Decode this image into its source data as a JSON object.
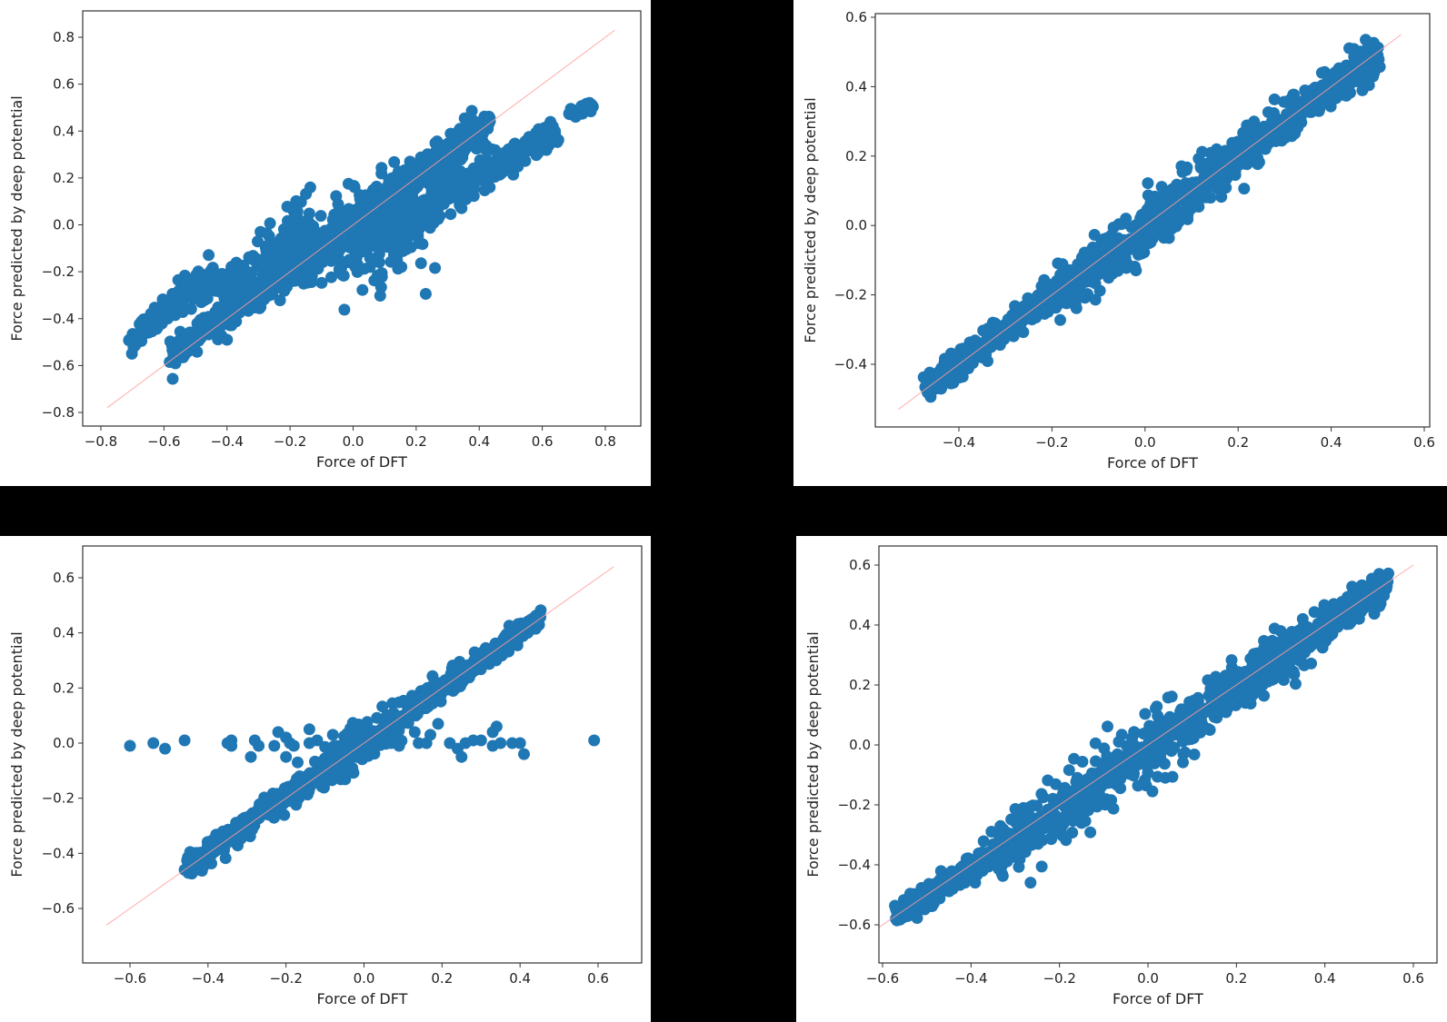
{
  "figure": {
    "background": "#000000",
    "panel_background": "#ffffff",
    "marker_color": "#1f77b4",
    "reference_line_color": "#ff9b9b"
  },
  "chart_data": [
    {
      "id": "top-left",
      "type": "scatter",
      "title": "",
      "xlabel": "Force of DFT",
      "ylabel": "Force predicted by deep potential",
      "xlim": [
        -0.86,
        0.9
      ],
      "ylim": [
        -0.85,
        0.9
      ],
      "xticks": [
        -0.8,
        -0.6,
        -0.4,
        -0.2,
        0.0,
        0.2,
        0.4,
        0.6,
        0.8
      ],
      "xtick_labels": [
        "−0.8",
        "−0.6",
        "−0.4",
        "−0.2",
        "0.0",
        "0.2",
        "0.4",
        "0.6",
        "0.8"
      ],
      "yticks": [
        -0.8,
        -0.6,
        -0.4,
        -0.2,
        0.0,
        0.2,
        0.4,
        0.6,
        0.8
      ],
      "ytick_labels": [
        "−0.8",
        "−0.6",
        "−0.4",
        "−0.2",
        "0.0",
        "0.2",
        "0.4",
        "0.6",
        "0.8"
      ],
      "grid": false,
      "reference_line": {
        "x": [
          -0.78,
          0.83
        ],
        "y": [
          -0.78,
          0.83
        ]
      },
      "bands": [
        {
          "x0": -0.71,
          "y0": -0.5,
          "x1": -0.55,
          "y1": -0.31,
          "spread": 0.025
        },
        {
          "x0": -0.55,
          "y0": -0.3,
          "x1": -0.35,
          "y1": -0.22,
          "spread": 0.035
        },
        {
          "x0": -0.35,
          "y0": -0.25,
          "x1": -0.15,
          "y1": -0.02,
          "spread": 0.06
        },
        {
          "x0": -0.2,
          "y0": -0.12,
          "x1": 0.2,
          "y1": 0.04,
          "spread": 0.11
        },
        {
          "x0": -0.57,
          "y0": -0.55,
          "x1": -0.15,
          "y1": -0.14,
          "spread": 0.03
        },
        {
          "x0": -0.15,
          "y0": -0.14,
          "x1": 0.43,
          "y1": 0.43,
          "spread": 0.035
        },
        {
          "x0": 0.05,
          "y0": -0.04,
          "x1": 0.35,
          "y1": 0.18,
          "spread": 0.05
        },
        {
          "x0": 0.35,
          "y0": 0.17,
          "x1": 0.64,
          "y1": 0.4,
          "spread": 0.03
        },
        {
          "x0": 0.69,
          "y0": 0.46,
          "x1": 0.76,
          "y1": 0.52,
          "spread": 0.012
        }
      ],
      "points": [
        [
          -0.71,
          -0.49
        ],
        [
          -0.57,
          -0.55
        ],
        [
          0.75,
          0.52
        ],
        [
          0.43,
          0.43
        ],
        [
          0.64,
          0.4
        ],
        [
          -0.4,
          -0.49
        ]
      ]
    },
    {
      "id": "top-right",
      "type": "scatter",
      "title": "",
      "xlabel": "Force of DFT",
      "ylabel": "Force predicted by deep potential",
      "xlim": [
        -0.58,
        0.61
      ],
      "ylim": [
        -0.58,
        0.61
      ],
      "xticks": [
        -0.4,
        -0.2,
        0.0,
        0.2,
        0.4,
        0.6
      ],
      "xtick_labels": [
        "−0.4",
        "−0.2",
        "0.0",
        "0.2",
        "0.4",
        "0.6"
      ],
      "yticks": [
        -0.4,
        -0.2,
        0.0,
        0.2,
        0.4,
        0.6
      ],
      "ytick_labels": [
        "−0.4",
        "−0.2",
        "0.0",
        "0.2",
        "0.4",
        "0.6"
      ],
      "grid": false,
      "reference_line": {
        "x": [
          -0.53,
          0.55
        ],
        "y": [
          -0.53,
          0.55
        ]
      },
      "bands": [
        {
          "x0": -0.47,
          "y0": -0.47,
          "x1": -0.2,
          "y1": -0.2,
          "spread": 0.02
        },
        {
          "x0": -0.2,
          "y0": -0.21,
          "x1": 0.2,
          "y1": 0.2,
          "spread": 0.035
        },
        {
          "x0": 0.2,
          "y0": 0.2,
          "x1": 0.5,
          "y1": 0.49,
          "spread": 0.025
        }
      ],
      "points": [
        [
          -0.47,
          -0.47
        ],
        [
          -0.46,
          -0.48
        ],
        [
          0.5,
          0.49
        ],
        [
          0.43,
          0.45
        ],
        [
          0.38,
          0.44
        ],
        [
          0.46,
          0.44
        ]
      ]
    },
    {
      "id": "bottom-left",
      "type": "scatter",
      "title": "",
      "xlabel": "Force of DFT",
      "ylabel": "Force predicted by deep potential",
      "xlim": [
        -0.72,
        0.72
      ],
      "ylim": [
        -0.72,
        0.72
      ],
      "xticks": [
        -0.6,
        -0.4,
        -0.2,
        0.0,
        0.2,
        0.4,
        0.6
      ],
      "xtick_labels": [
        "−0.6",
        "−0.4",
        "−0.2",
        "0.0",
        "0.2",
        "0.4",
        "0.6"
      ],
      "yticks": [
        -0.6,
        -0.4,
        -0.2,
        0.0,
        0.2,
        0.4,
        0.6
      ],
      "ytick_labels": [
        "−0.6",
        "−0.4",
        "−0.2",
        "0.0",
        "0.2",
        "0.4",
        "0.6"
      ],
      "grid": false,
      "reference_line": {
        "x": [
          -0.66,
          0.64
        ],
        "y": [
          -0.66,
          0.64
        ]
      },
      "bands": [
        {
          "x0": -0.46,
          "y0": -0.46,
          "x1": -0.1,
          "y1": -0.1,
          "spread": 0.02
        },
        {
          "x0": -0.1,
          "y0": -0.1,
          "x1": 0.1,
          "y1": 0.1,
          "spread": 0.035
        },
        {
          "x0": 0.1,
          "y0": 0.1,
          "x1": 0.45,
          "y1": 0.45,
          "spread": 0.02
        }
      ],
      "points": [
        [
          -0.6,
          -0.01
        ],
        [
          -0.54,
          0.0
        ],
        [
          -0.51,
          -0.02
        ],
        [
          -0.46,
          0.01
        ],
        [
          -0.35,
          0.0
        ],
        [
          -0.34,
          0.01
        ],
        [
          -0.34,
          -0.01
        ],
        [
          -0.29,
          -0.05
        ],
        [
          -0.28,
          0.01
        ],
        [
          -0.27,
          -0.01
        ],
        [
          -0.23,
          -0.01
        ],
        [
          -0.22,
          0.04
        ],
        [
          -0.2,
          -0.05
        ],
        [
          -0.2,
          0.02
        ],
        [
          -0.19,
          0.0
        ],
        [
          -0.18,
          -0.01
        ],
        [
          -0.17,
          -0.07
        ],
        [
          -0.14,
          0.0
        ],
        [
          -0.14,
          0.05
        ],
        [
          -0.12,
          0.01
        ],
        [
          -0.08,
          0.03
        ],
        [
          -0.06,
          -0.01
        ],
        [
          -0.03,
          -0.09
        ],
        [
          0.07,
          0.0
        ],
        [
          0.09,
          -0.01
        ],
        [
          0.13,
          0.04
        ],
        [
          0.14,
          0.0
        ],
        [
          0.16,
          0.0
        ],
        [
          0.17,
          0.03
        ],
        [
          0.19,
          0.07
        ],
        [
          0.22,
          0.0
        ],
        [
          0.24,
          -0.02
        ],
        [
          0.25,
          -0.05
        ],
        [
          0.26,
          0.0
        ],
        [
          0.28,
          0.01
        ],
        [
          0.3,
          0.01
        ],
        [
          0.33,
          -0.01
        ],
        [
          0.33,
          0.04
        ],
        [
          0.34,
          0.06
        ],
        [
          0.35,
          0.0
        ],
        [
          0.38,
          0.0
        ],
        [
          0.4,
          0.0
        ],
        [
          0.41,
          -0.04
        ],
        [
          0.59,
          0.01
        ],
        [
          0.45,
          0.46
        ],
        [
          -0.46,
          -0.46
        ]
      ]
    },
    {
      "id": "bottom-right",
      "type": "scatter",
      "title": "",
      "xlabel": "Force of DFT",
      "ylabel": "Force predicted by deep potential",
      "xlim": [
        -0.69,
        0.65
      ],
      "ylim": [
        -0.68,
        0.66
      ],
      "xticks": [
        -0.6,
        -0.4,
        -0.2,
        0.0,
        0.2,
        0.4,
        0.6
      ],
      "xtick_labels": [
        "−0.6",
        "−0.4",
        "−0.2",
        "0.0",
        "0.2",
        "0.4",
        "0.6"
      ],
      "yticks": [
        -0.6,
        -0.4,
        -0.2,
        0.0,
        0.2,
        0.4,
        0.6
      ],
      "ytick_labels": [
        "−0.6",
        "−0.4",
        "−0.2",
        "0.0",
        "0.2",
        "0.4",
        "0.6"
      ],
      "grid": false,
      "reference_line": {
        "x": [
          -0.63,
          0.6
        ],
        "y": [
          -0.63,
          0.6
        ]
      },
      "bands": [
        {
          "x0": -0.57,
          "y0": -0.57,
          "x1": -0.35,
          "y1": -0.37,
          "spread": 0.02
        },
        {
          "x0": -0.35,
          "y0": -0.37,
          "x1": 0.1,
          "y1": 0.08,
          "spread": 0.05
        },
        {
          "x0": 0.1,
          "y0": 0.1,
          "x1": 0.35,
          "y1": 0.34,
          "spread": 0.04
        },
        {
          "x0": 0.35,
          "y0": 0.35,
          "x1": 0.54,
          "y1": 0.53,
          "spread": 0.025
        }
      ],
      "points": [
        [
          -0.57,
          -0.58
        ],
        [
          -0.33,
          -0.43
        ],
        [
          0.14,
          0.05
        ],
        [
          0.08,
          -0.03
        ],
        [
          0.3,
          0.38
        ],
        [
          0.35,
          0.42
        ],
        [
          0.39,
          0.44
        ],
        [
          0.42,
          0.47
        ],
        [
          0.46,
          0.5
        ],
        [
          0.49,
          0.51
        ],
        [
          0.54,
          0.53
        ]
      ]
    }
  ]
}
